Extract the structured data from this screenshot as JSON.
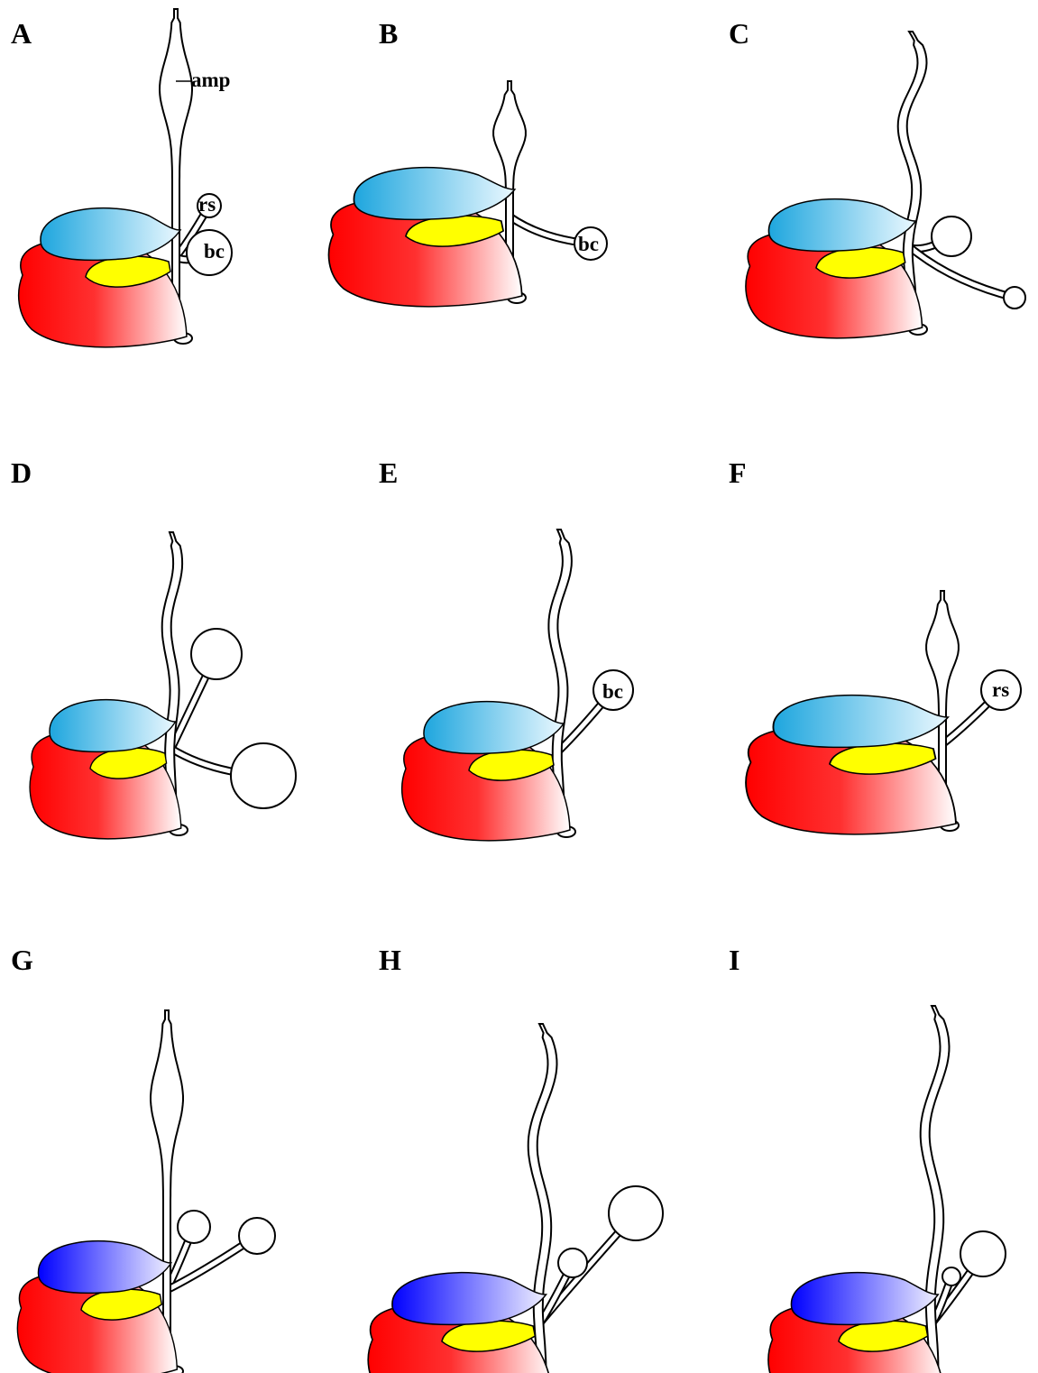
{
  "panels": [
    {
      "label": "A",
      "annotations": [
        "amp",
        "rs",
        "bc"
      ]
    },
    {
      "label": "B",
      "annotations": [
        "bc"
      ]
    },
    {
      "label": "C"
    },
    {
      "label": "D"
    },
    {
      "label": "E",
      "annotations": [
        "bc"
      ]
    },
    {
      "label": "F",
      "annotations": [
        "rs"
      ]
    },
    {
      "label": "G"
    },
    {
      "label": "H"
    },
    {
      "label": "I"
    }
  ]
}
